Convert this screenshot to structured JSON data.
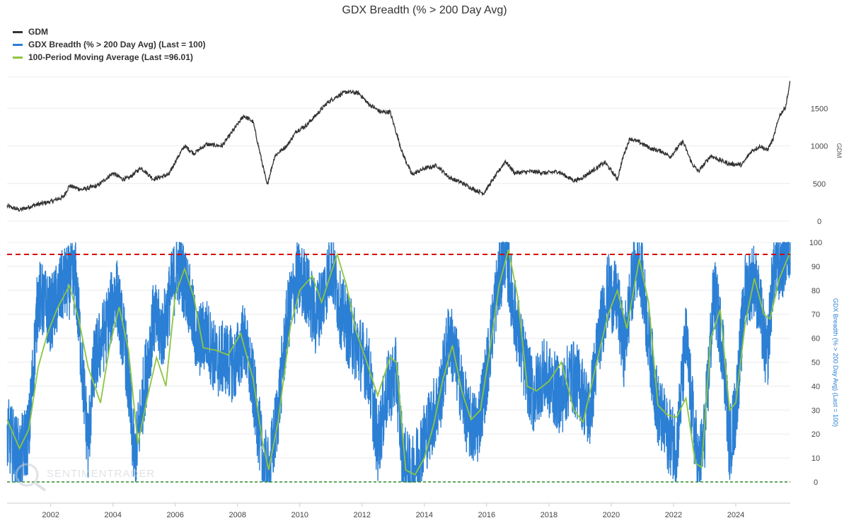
{
  "chart_data": {
    "type": "line",
    "title": "GDX Breadth (% > 200 Day Avg)",
    "watermark": "SENTIMENTRADER",
    "x_range": [
      2000.6,
      2025.75
    ],
    "x_ticks": [
      "2002",
      "2004",
      "2006",
      "2008",
      "2010",
      "2012",
      "2014",
      "2016",
      "2018",
      "2020",
      "2022",
      "2024"
    ],
    "legend": [
      {
        "label": "GDM",
        "color": "#333333"
      },
      {
        "label": "GDX Breadth (% > 200 Day Avg) (Last = 100)",
        "color": "#2b7fd4"
      },
      {
        "label": "100-Period Moving Average (Last =96.01)",
        "color": "#8cc63f"
      }
    ],
    "upper_panel": {
      "ylabel": "GDM",
      "ylim": [
        0,
        2000
      ],
      "y_ticks": [
        "0",
        "500",
        "1000",
        "1500"
      ],
      "series": [
        {
          "name": "GDM",
          "color": "#333333",
          "points": [
            [
              2000.6,
              200
            ],
            [
              2001.0,
              150
            ],
            [
              2001.5,
              215
            ],
            [
              2002.0,
              260
            ],
            [
              2002.4,
              320
            ],
            [
              2002.6,
              470
            ],
            [
              2003.0,
              420
            ],
            [
              2003.5,
              470
            ],
            [
              2004.0,
              640
            ],
            [
              2004.3,
              560
            ],
            [
              2004.5,
              570
            ],
            [
              2004.9,
              710
            ],
            [
              2005.3,
              560
            ],
            [
              2005.8,
              620
            ],
            [
              2006.0,
              790
            ],
            [
              2006.3,
              1000
            ],
            [
              2006.6,
              900
            ],
            [
              2007.0,
              1020
            ],
            [
              2007.5,
              1000
            ],
            [
              2007.8,
              1170
            ],
            [
              2008.2,
              1400
            ],
            [
              2008.5,
              1320
            ],
            [
              2008.8,
              760
            ],
            [
              2008.95,
              480
            ],
            [
              2009.2,
              870
            ],
            [
              2009.6,
              1010
            ],
            [
              2009.9,
              1200
            ],
            [
              2010.2,
              1270
            ],
            [
              2010.5,
              1400
            ],
            [
              2010.9,
              1580
            ],
            [
              2011.2,
              1660
            ],
            [
              2011.5,
              1720
            ],
            [
              2011.9,
              1700
            ],
            [
              2012.2,
              1560
            ],
            [
              2012.6,
              1450
            ],
            [
              2012.9,
              1450
            ],
            [
              2013.3,
              900
            ],
            [
              2013.6,
              620
            ],
            [
              2014.0,
              700
            ],
            [
              2014.4,
              740
            ],
            [
              2014.8,
              580
            ],
            [
              2015.2,
              510
            ],
            [
              2015.6,
              420
            ],
            [
              2015.9,
              370
            ],
            [
              2016.3,
              610
            ],
            [
              2016.6,
              800
            ],
            [
              2016.9,
              640
            ],
            [
              2017.4,
              660
            ],
            [
              2017.9,
              640
            ],
            [
              2018.3,
              660
            ],
            [
              2018.8,
              540
            ],
            [
              2019.0,
              560
            ],
            [
              2019.5,
              700
            ],
            [
              2019.8,
              780
            ],
            [
              2020.2,
              560
            ],
            [
              2020.4,
              880
            ],
            [
              2020.6,
              1100
            ],
            [
              2020.9,
              1050
            ],
            [
              2021.3,
              960
            ],
            [
              2021.6,
              930
            ],
            [
              2021.9,
              860
            ],
            [
              2022.3,
              1060
            ],
            [
              2022.6,
              760
            ],
            [
              2022.8,
              660
            ],
            [
              2023.2,
              870
            ],
            [
              2023.5,
              810
            ],
            [
              2023.8,
              760
            ],
            [
              2024.2,
              750
            ],
            [
              2024.5,
              930
            ],
            [
              2024.8,
              1000
            ],
            [
              2025.0,
              940
            ],
            [
              2025.2,
              1090
            ],
            [
              2025.4,
              1400
            ],
            [
              2025.6,
              1520
            ],
            [
              2025.75,
              1860
            ]
          ]
        }
      ]
    },
    "lower_panel": {
      "ylabel": "GDX Breadth (% > 200 Day Avg) (Last = 100)",
      "ylim": [
        0,
        100
      ],
      "y_ticks": [
        "0",
        "10",
        "20",
        "30",
        "40",
        "50",
        "60",
        "70",
        "80",
        "90",
        "100"
      ],
      "reference_lines": [
        {
          "y": 95,
          "color": "#d40000",
          "style": "dashed"
        },
        {
          "y": 0,
          "color": "#2e8b2e",
          "style": "dashed"
        }
      ],
      "series": [
        {
          "name": "GDX Breadth (% > 200 Day Avg)",
          "color": "#2b7fd4",
          "points": [
            [
              2000.6,
              20
            ],
            [
              2001.0,
              10
            ],
            [
              2001.3,
              20
            ],
            [
              2001.6,
              78
            ],
            [
              2002.0,
              70
            ],
            [
              2002.4,
              82
            ],
            [
              2002.8,
              85
            ],
            [
              2003.2,
              15
            ],
            [
              2003.4,
              50
            ],
            [
              2003.8,
              65
            ],
            [
              2004.1,
              80
            ],
            [
              2004.4,
              55
            ],
            [
              2004.7,
              8
            ],
            [
              2005.0,
              40
            ],
            [
              2005.3,
              68
            ],
            [
              2005.6,
              62
            ],
            [
              2005.9,
              82
            ],
            [
              2006.1,
              90
            ],
            [
              2006.4,
              80
            ],
            [
              2006.7,
              58
            ],
            [
              2007.0,
              62
            ],
            [
              2007.3,
              50
            ],
            [
              2007.6,
              52
            ],
            [
              2007.9,
              48
            ],
            [
              2008.2,
              60
            ],
            [
              2008.5,
              40
            ],
            [
              2008.8,
              10
            ],
            [
              2009.0,
              2
            ],
            [
              2009.3,
              30
            ],
            [
              2009.6,
              68
            ],
            [
              2009.9,
              85
            ],
            [
              2010.2,
              82
            ],
            [
              2010.5,
              68
            ],
            [
              2010.8,
              80
            ],
            [
              2011.0,
              92
            ],
            [
              2011.3,
              72
            ],
            [
              2011.6,
              62
            ],
            [
              2011.9,
              55
            ],
            [
              2012.2,
              48
            ],
            [
              2012.5,
              15
            ],
            [
              2012.8,
              38
            ],
            [
              2013.1,
              45
            ],
            [
              2013.3,
              10
            ],
            [
              2013.6,
              2
            ],
            [
              2013.9,
              15
            ],
            [
              2014.2,
              25
            ],
            [
              2014.5,
              35
            ],
            [
              2014.8,
              62
            ],
            [
              2015.1,
              45
            ],
            [
              2015.4,
              25
            ],
            [
              2015.7,
              22
            ],
            [
              2016.0,
              45
            ],
            [
              2016.3,
              78
            ],
            [
              2016.6,
              97
            ],
            [
              2016.9,
              70
            ],
            [
              2017.2,
              50
            ],
            [
              2017.5,
              35
            ],
            [
              2017.8,
              45
            ],
            [
              2018.1,
              40
            ],
            [
              2018.4,
              35
            ],
            [
              2018.7,
              45
            ],
            [
              2019.0,
              40
            ],
            [
              2019.3,
              28
            ],
            [
              2019.6,
              60
            ],
            [
              2019.9,
              80
            ],
            [
              2020.2,
              75
            ],
            [
              2020.4,
              55
            ],
            [
              2020.7,
              85
            ],
            [
              2020.9,
              95
            ],
            [
              2021.2,
              60
            ],
            [
              2021.5,
              30
            ],
            [
              2021.8,
              20
            ],
            [
              2022.1,
              15
            ],
            [
              2022.4,
              60
            ],
            [
              2022.6,
              30
            ],
            [
              2022.8,
              5
            ],
            [
              2023.0,
              20
            ],
            [
              2023.3,
              80
            ],
            [
              2023.6,
              55
            ],
            [
              2023.8,
              15
            ],
            [
              2024.0,
              30
            ],
            [
              2024.3,
              80
            ],
            [
              2024.6,
              85
            ],
            [
              2024.8,
              70
            ],
            [
              2025.0,
              50
            ],
            [
              2025.2,
              88
            ],
            [
              2025.5,
              92
            ],
            [
              2025.75,
              100
            ]
          ]
        },
        {
          "name": "100-Period Moving Average",
          "color": "#8cc63f",
          "points": [
            [
              2000.6,
              26
            ],
            [
              2001.0,
              14
            ],
            [
              2001.3,
              22
            ],
            [
              2001.6,
              48
            ],
            [
              2001.9,
              62
            ],
            [
              2002.2,
              72
            ],
            [
              2002.6,
              82
            ],
            [
              2002.9,
              68
            ],
            [
              2003.2,
              48
            ],
            [
              2003.6,
              33
            ],
            [
              2003.9,
              57
            ],
            [
              2004.2,
              73
            ],
            [
              2004.5,
              55
            ],
            [
              2004.8,
              16
            ],
            [
              2005.1,
              35
            ],
            [
              2005.4,
              52
            ],
            [
              2005.7,
              40
            ],
            [
              2006.0,
              78
            ],
            [
              2006.3,
              89
            ],
            [
              2006.6,
              77
            ],
            [
              2006.9,
              56
            ],
            [
              2007.3,
              55
            ],
            [
              2007.7,
              53
            ],
            [
              2008.1,
              62
            ],
            [
              2008.5,
              43
            ],
            [
              2008.8,
              17
            ],
            [
              2009.0,
              5
            ],
            [
              2009.3,
              25
            ],
            [
              2009.7,
              65
            ],
            [
              2010.0,
              80
            ],
            [
              2010.4,
              86
            ],
            [
              2010.7,
              75
            ],
            [
              2011.0,
              87
            ],
            [
              2011.2,
              95
            ],
            [
              2011.5,
              82
            ],
            [
              2011.8,
              63
            ],
            [
              2012.1,
              52
            ],
            [
              2012.5,
              36
            ],
            [
              2012.9,
              52
            ],
            [
              2013.1,
              50
            ],
            [
              2013.4,
              5
            ],
            [
              2013.7,
              3
            ],
            [
              2014.0,
              10
            ],
            [
              2014.3,
              24
            ],
            [
              2014.6,
              43
            ],
            [
              2014.9,
              57
            ],
            [
              2015.2,
              38
            ],
            [
              2015.5,
              26
            ],
            [
              2015.8,
              30
            ],
            [
              2016.1,
              55
            ],
            [
              2016.4,
              82
            ],
            [
              2016.7,
              97
            ],
            [
              2017.0,
              77
            ],
            [
              2017.3,
              40
            ],
            [
              2017.6,
              38
            ],
            [
              2018.0,
              42
            ],
            [
              2018.4,
              50
            ],
            [
              2018.8,
              30
            ],
            [
              2019.1,
              25
            ],
            [
              2019.5,
              48
            ],
            [
              2019.9,
              70
            ],
            [
              2020.2,
              80
            ],
            [
              2020.5,
              64
            ],
            [
              2020.9,
              93
            ],
            [
              2021.2,
              75
            ],
            [
              2021.5,
              32
            ],
            [
              2021.8,
              28
            ],
            [
              2022.1,
              27
            ],
            [
              2022.4,
              35
            ],
            [
              2022.7,
              8
            ],
            [
              2022.9,
              6
            ],
            [
              2023.2,
              60
            ],
            [
              2023.5,
              72
            ],
            [
              2023.8,
              30
            ],
            [
              2024.0,
              33
            ],
            [
              2024.3,
              66
            ],
            [
              2024.6,
              85
            ],
            [
              2024.9,
              70
            ],
            [
              2025.1,
              68
            ],
            [
              2025.4,
              85
            ],
            [
              2025.75,
              96.01
            ]
          ]
        }
      ]
    }
  }
}
